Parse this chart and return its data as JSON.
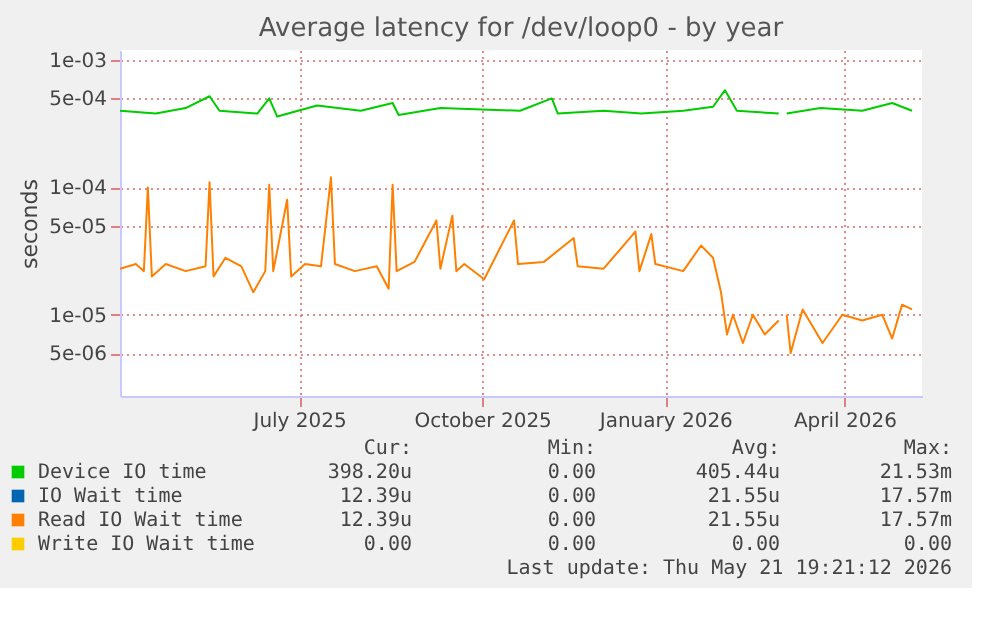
{
  "chart_data": {
    "type": "line",
    "title": "Average latency for /dev/loop0 - by year",
    "ylabel": "seconds",
    "log": "y",
    "grid": true,
    "legend": "bottom",
    "xlim": [
      "2025-04-02",
      "2026-05-10"
    ],
    "xticks": [
      {
        "value": "2025-07-01",
        "label": "July 2025"
      },
      {
        "value": "2025-10-01",
        "label": "October 2025"
      },
      {
        "value": "2026-01-01",
        "label": "January 2026"
      },
      {
        "value": "2026-04-01",
        "label": "April 2026"
      }
    ],
    "ylim": [
      2.3e-06,
      0.0012
    ],
    "yticks": [
      {
        "value": 0.001,
        "label": "1e-03"
      },
      {
        "value": 0.0005,
        "label": "5e-04"
      },
      {
        "value": 0.0001,
        "label": "1e-04"
      },
      {
        "value": 5e-05,
        "label": "5e-05"
      },
      {
        "value": 1e-05,
        "label": "1e-05"
      },
      {
        "value": 5e-06,
        "label": "5e-06"
      }
    ],
    "series": [
      {
        "name": "Device IO time",
        "color": "#00cc00",
        "x": [
          "2025-04-02",
          "2025-04-20",
          "2025-05-05",
          "2025-05-17",
          "2025-05-22",
          "2025-06-10",
          "2025-06-16",
          "2025-06-20",
          "2025-07-10",
          "2025-08-01",
          "2025-08-17",
          "2025-08-20",
          "2025-09-10",
          "2025-10-01",
          "2025-10-20",
          "2025-11-05",
          "2025-11-08",
          "2025-12-01",
          "2025-12-20",
          "2026-01-10",
          "2026-01-25",
          "2026-01-31",
          "2026-02-06",
          "2026-02-27",
          "2026-03-01",
          "2026-03-03",
          "2026-03-20",
          "2026-04-10",
          "2026-04-25",
          "2026-05-05"
        ],
        "values": [
          0.0004,
          0.00038,
          0.00042,
          0.00052,
          0.0004,
          0.00038,
          0.0005,
          0.00036,
          0.00044,
          0.0004,
          0.00046,
          0.00037,
          0.00042,
          0.00041,
          0.0004,
          0.0005,
          0.00038,
          0.0004,
          0.00038,
          0.0004,
          0.00043,
          0.00058,
          0.0004,
          0.00038,
          null,
          0.00038,
          0.00042,
          0.0004,
          0.00046,
          0.0004
        ]
      },
      {
        "name": "IO Wait time",
        "color": "#0066b3"
      },
      {
        "name": "Read IO Wait time",
        "color": "#ff8000",
        "x": [
          "2025-04-02",
          "2025-04-10",
          "2025-04-14",
          "2025-04-16",
          "2025-04-18",
          "2025-04-25",
          "2025-05-05",
          "2025-05-15",
          "2025-05-17",
          "2025-05-19",
          "2025-05-25",
          "2025-06-02",
          "2025-06-08",
          "2025-06-14",
          "2025-06-16",
          "2025-06-18",
          "2025-06-25",
          "2025-06-27",
          "2025-07-04",
          "2025-07-12",
          "2025-07-17",
          "2025-07-19",
          "2025-07-29",
          "2025-08-09",
          "2025-08-15",
          "2025-08-17",
          "2025-08-19",
          "2025-08-28",
          "2025-09-08",
          "2025-09-10",
          "2025-09-16",
          "2025-09-18",
          "2025-09-22",
          "2025-10-02",
          "2025-10-17",
          "2025-10-19",
          "2025-11-01",
          "2025-11-16",
          "2025-11-18",
          "2025-12-01",
          "2025-12-17",
          "2025-12-19",
          "2025-12-25",
          "2025-12-27",
          "2026-01-10",
          "2026-01-19",
          "2026-01-25",
          "2026-01-29",
          "2026-02-01",
          "2026-02-04",
          "2026-02-09",
          "2026-02-14",
          "2026-02-20",
          "2026-02-27",
          "2026-03-01",
          "2026-03-03",
          "2026-03-05",
          "2026-03-11",
          "2026-03-21",
          "2026-03-31",
          "2026-04-10",
          "2026-04-20",
          "2026-04-25",
          "2026-04-30",
          "2026-05-05"
        ],
        "values": [
          2.3e-05,
          2.5e-05,
          2.2e-05,
          0.0001,
          2e-05,
          2.5e-05,
          2.2e-05,
          2.4e-05,
          0.00011,
          2e-05,
          2.8e-05,
          2.4e-05,
          1.5e-05,
          2.2e-05,
          0.000105,
          2.2e-05,
          8e-05,
          2e-05,
          2.5e-05,
          2.4e-05,
          0.00012,
          2.5e-05,
          2.2e-05,
          2.4e-05,
          1.6e-05,
          0.000105,
          2.2e-05,
          2.6e-05,
          5.5e-05,
          2.3e-05,
          6e-05,
          2.2e-05,
          2.5e-05,
          1.9e-05,
          5.5e-05,
          2.5e-05,
          2.6e-05,
          4e-05,
          2.4e-05,
          2.3e-05,
          4.5e-05,
          2.2e-05,
          4.3e-05,
          2.5e-05,
          2.2e-05,
          3.5e-05,
          2.8e-05,
          1.5e-05,
          7e-06,
          1e-05,
          6e-06,
          1e-05,
          7e-06,
          9e-06,
          null,
          1e-05,
          5e-06,
          1.1e-05,
          6e-06,
          1e-05,
          9e-06,
          1e-05,
          6.5e-06,
          1.2e-05,
          1.1e-05
        ]
      },
      {
        "name": "Write IO Wait time",
        "color": "#ffcc00"
      }
    ],
    "annotations": [
      "Cur:",
      "Min:",
      "Avg:",
      "Max:",
      "398.20u",
      "0.00",
      "405.44u",
      "21.53m",
      "12.39u",
      "0.00",
      "21.55u",
      "17.57m",
      "12.39u",
      "0.00",
      "21.55u",
      "17.57m",
      "0.00",
      "0.00",
      "0.00",
      "0.00",
      "Last update: Thu May 21 19:21:12 2026"
    ]
  }
}
